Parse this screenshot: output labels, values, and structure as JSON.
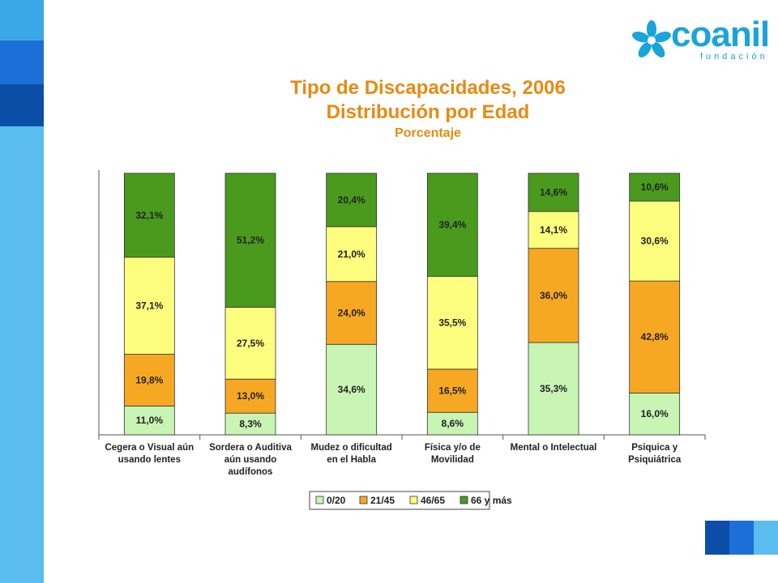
{
  "brand": {
    "name": "coanil",
    "tagline": "fundación",
    "colors": {
      "primary": "#1ba3dc",
      "dark": "#0b4ea8",
      "mid": "#1d6fd8",
      "light": "#5bbcf0"
    }
  },
  "chart_data": {
    "type": "bar",
    "stacked": true,
    "title": "Tipo de Discapacidades, 2006",
    "subtitle": "Distribución por Edad",
    "ylabel": "Porcentaje",
    "ylim": [
      0,
      100
    ],
    "grid": false,
    "legend_position": "bottom",
    "categories": [
      [
        "Cegera o Visual aún",
        "usando lentes"
      ],
      [
        "Sordera o Auditiva",
        "aún usando",
        "audífonos"
      ],
      [
        "Mudez o dificultad",
        "en el Habla"
      ],
      [
        "Física y/o de",
        "Movilidad"
      ],
      [
        "Mental o Intelectual"
      ],
      [
        "Psiquica y",
        "Psiquiátrica"
      ]
    ],
    "series": [
      {
        "name": "0/20",
        "color": "#c8f5b4",
        "values": [
          11.0,
          8.3,
          34.6,
          8.6,
          35.3,
          16.0
        ],
        "labels": [
          "11,0%",
          "8,3%",
          "34,6%",
          "8,6%",
          "35,3%",
          "16,0%"
        ]
      },
      {
        "name": "21/45",
        "color": "#f7a823",
        "values": [
          19.8,
          13.0,
          24.0,
          16.5,
          36.0,
          42.8
        ],
        "labels": [
          "19,8%",
          "13,0%",
          "24,0%",
          "16,5%",
          "36,0%",
          "42,8%"
        ]
      },
      {
        "name": "46/65",
        "color": "#fdfd7e",
        "values": [
          37.1,
          27.5,
          21.0,
          35.5,
          14.1,
          30.6
        ],
        "labels": [
          "37,1%",
          "27,5%",
          "21,0%",
          "35,5%",
          "14,1%",
          "30,6%"
        ]
      },
      {
        "name": "66 y más",
        "color": "#4a9a1e",
        "values": [
          32.1,
          51.2,
          20.4,
          39.4,
          14.6,
          10.6
        ],
        "labels": [
          "32,1%",
          "51,2%",
          "20,4%",
          "39,4%",
          "14,6%",
          "10,6%"
        ]
      }
    ]
  }
}
